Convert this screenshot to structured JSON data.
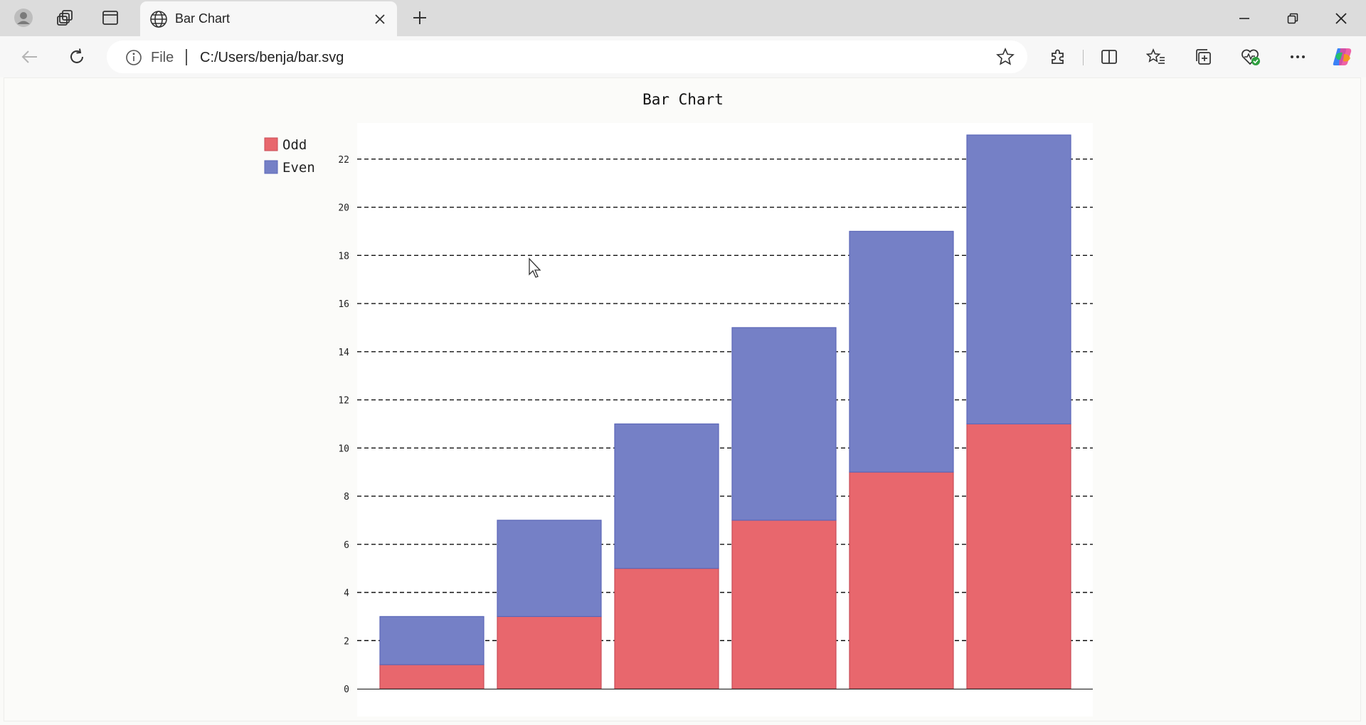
{
  "browser": {
    "tab_title": "Bar Chart",
    "address_scheme": "File",
    "address_url": "C:/Users/benja/bar.svg",
    "icons": [
      "profile-icon",
      "workspaces-icon",
      "vertical-tabs-icon",
      "globe-icon",
      "close-icon",
      "plus-icon",
      "minimize-icon",
      "restore-icon",
      "window-close-icon",
      "back-arrow-icon",
      "refresh-icon",
      "info-icon",
      "star-icon",
      "extensions-icon",
      "split-screen-icon",
      "favorites-icon",
      "collections-icon",
      "browser-essentials-icon",
      "more-icon",
      "copilot-icon"
    ]
  },
  "chart_data": {
    "type": "bar",
    "stacked": true,
    "title": "Bar Chart",
    "categories": [
      "",
      "",
      "",
      "",
      "",
      ""
    ],
    "series": [
      {
        "name": "Odd",
        "values": [
          1,
          3,
          5,
          7,
          9,
          11
        ],
        "color": "#e8676d"
      },
      {
        "name": "Even",
        "values": [
          2,
          4,
          6,
          8,
          10,
          12
        ],
        "color": "#7580c6"
      }
    ],
    "ylim": [
      0,
      23.5
    ],
    "yticks": [
      "0",
      "2",
      "4",
      "6",
      "8",
      "10",
      "12",
      "14",
      "16",
      "18",
      "20",
      "22"
    ],
    "ytick_values": [
      0,
      2,
      4,
      6,
      8,
      10,
      12,
      14,
      16,
      18,
      20,
      22
    ],
    "grid": true,
    "legend_position": "top-left"
  }
}
